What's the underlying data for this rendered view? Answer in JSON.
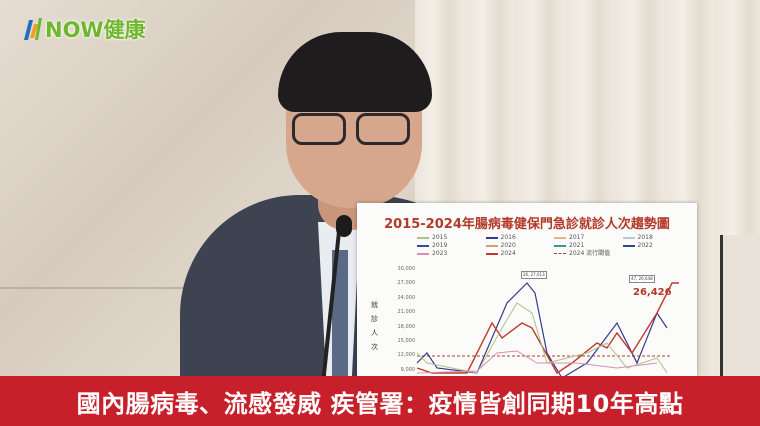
{
  "logo": {
    "text": "NOW健康",
    "brand_color": "#6fb82c"
  },
  "poster": {
    "title": "2015-2024年腸病毒健保門急診就診人次趨勢圖",
    "legend": [
      {
        "label": "2015",
        "color": "#a8c48a"
      },
      {
        "label": "2016",
        "color": "#3a3a8c"
      },
      {
        "label": "2017",
        "color": "#e8b08a"
      },
      {
        "label": "2018",
        "color": "#b8c8d8"
      },
      {
        "label": "2019",
        "color": "#3a4aa0"
      },
      {
        "label": "2020",
        "color": "#d8a070"
      },
      {
        "label": "2021",
        "color": "#3a9a9a"
      },
      {
        "label": "2022",
        "color": "#2a4a8a"
      },
      {
        "label": "2023",
        "color": "#d890b0"
      },
      {
        "label": "2024",
        "color": "#c0392b"
      },
      {
        "label": "2024 流行閾值",
        "color": "#c0392b"
      }
    ],
    "y_ticks": [
      "30,000",
      "27,000",
      "24,000",
      "21,000",
      "18,000",
      "15,000",
      "12,000",
      "9,000"
    ],
    "y_label": "就診人次",
    "callout_a": "26, 27,013",
    "callout_b": "47, 26,648",
    "latest_value": "26,426"
  },
  "banner": {
    "headline": "國內腸病毒、流感發威 疾管署：疫情皆創同期10年高點",
    "color": "#c8202a"
  }
}
